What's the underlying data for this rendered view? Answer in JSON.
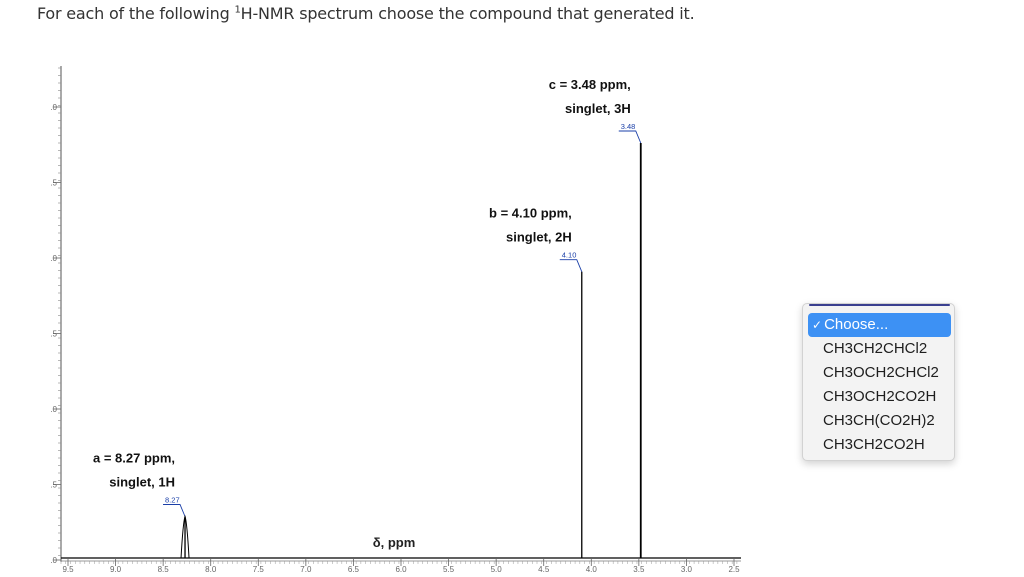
{
  "question": {
    "prefix": "For each of the following ",
    "superscript": "1",
    "suffix": "H-NMR spectrum choose the compound that generated it."
  },
  "chart_data": {
    "type": "line",
    "title": "",
    "xlabel": "δ, ppm",
    "ylabel": "",
    "xlim": [
      9.5,
      2.5
    ],
    "x_ticks": [
      "9.5",
      "9.0",
      "8.5",
      "8.0",
      "7.5",
      "7.0",
      "6.5",
      "6.0",
      "5.5",
      "5.0",
      "4.5",
      "4.0",
      "3.5",
      "3.0",
      "2.5"
    ],
    "y_ticks_fragments": [
      ".0",
      ".5",
      ".0",
      ".5",
      ".0",
      ".5",
      ".0"
    ],
    "peaks": [
      {
        "ppm": 8.27,
        "relative_height": 0.1,
        "label_line1": "a = 8.27 ppm,",
        "label_line2": "singlet, 1H",
        "marker": "8.27"
      },
      {
        "ppm": 4.1,
        "relative_height": 0.69,
        "label_line1": "b = 4.10 ppm,",
        "label_line2": "singlet, 2H",
        "marker": "4.10"
      },
      {
        "ppm": 3.48,
        "relative_height": 1.0,
        "label_line1": "c = 3.48 ppm,",
        "label_line2": "singlet, 3H",
        "marker": "3.48"
      }
    ],
    "line_color": "#000000",
    "marker_color": "#1a3fa8"
  },
  "dropdown": {
    "check": "✓",
    "options": [
      "Choose...",
      "CH3CH2CHCl2",
      "CH3OCH2CHCl2",
      "CH3OCH2CO2H",
      "CH3CH(CO2H)2",
      "CH3CH2CO2H"
    ],
    "selected_index": 0,
    "selected_bg": "#3d91f4"
  }
}
